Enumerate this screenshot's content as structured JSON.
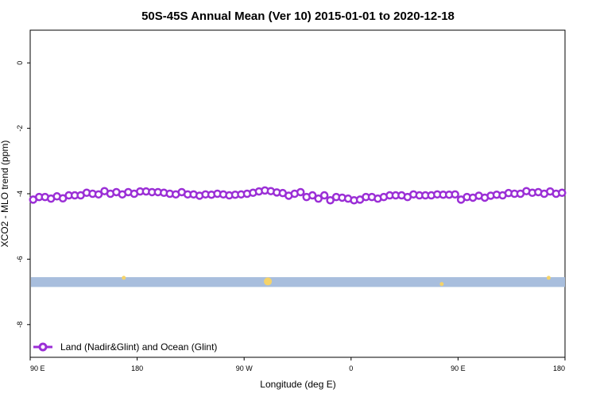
{
  "chart_data": {
    "type": "line",
    "title": "50S-45S Annual Mean (Ver 10)   2015-01-01 to 2020-12-18",
    "xlabel": "Longitude (deg E)",
    "ylabel": "XCO2 - MLO trend (ppm)",
    "xlim": [
      90,
      450
    ],
    "ylim": [
      -9,
      1
    ],
    "x_ticks": [
      {
        "value": 90,
        "label": "90 E"
      },
      {
        "value": 162,
        "label": "180"
      },
      {
        "value": 234,
        "label": "90 W"
      },
      {
        "value": 306,
        "label": "0"
      },
      {
        "value": 378,
        "label": "90 E"
      },
      {
        "value": 450,
        "label": "180"
      }
    ],
    "y_ticks": [
      0,
      -2,
      -4,
      -6,
      -8
    ],
    "legend": {
      "position": "bottom-left",
      "label": "Land (Nadir&Glint) and Ocean (Glint)",
      "color": "#9b2fd6"
    },
    "series": [
      {
        "name": "Land (Nadir&Glint) and Ocean (Glint)",
        "color": "#9b2fd6",
        "x": [
          92,
          96,
          100,
          104,
          108,
          112,
          116,
          120,
          124,
          128,
          132,
          136,
          140,
          144,
          148,
          152,
          156,
          160,
          164,
          168,
          172,
          176,
          180,
          184,
          188,
          192,
          196,
          200,
          204,
          208,
          212,
          216,
          220,
          224,
          228,
          232,
          236,
          240,
          244,
          248,
          252,
          256,
          260,
          264,
          268,
          272,
          276,
          280,
          284,
          288,
          292,
          296,
          300,
          304,
          308,
          312,
          316,
          320,
          324,
          328,
          332,
          336,
          340,
          344,
          348,
          352,
          356,
          360,
          364,
          368,
          372,
          376,
          380,
          384,
          388,
          392,
          396,
          400,
          404,
          408,
          412,
          416,
          420,
          424,
          428,
          432,
          436,
          440,
          444,
          448
        ],
        "values": [
          -4.18,
          -4.1,
          -4.1,
          -4.15,
          -4.08,
          -4.14,
          -4.05,
          -4.05,
          -4.05,
          -3.97,
          -4.0,
          -4.02,
          -3.92,
          -4.0,
          -3.95,
          -4.02,
          -3.95,
          -4.0,
          -3.93,
          -3.93,
          -3.95,
          -3.95,
          -3.97,
          -4.0,
          -4.02,
          -3.95,
          -4.02,
          -4.02,
          -4.06,
          -4.02,
          -4.03,
          -4.0,
          -4.02,
          -4.05,
          -4.03,
          -4.02,
          -4.0,
          -3.97,
          -3.93,
          -3.9,
          -3.92,
          -3.96,
          -3.98,
          -4.06,
          -4.0,
          -3.95,
          -4.1,
          -4.05,
          -4.15,
          -4.05,
          -4.2,
          -4.1,
          -4.12,
          -4.15,
          -4.2,
          -4.18,
          -4.1,
          -4.1,
          -4.15,
          -4.1,
          -4.05,
          -4.05,
          -4.05,
          -4.1,
          -4.02,
          -4.05,
          -4.05,
          -4.05,
          -4.02,
          -4.03,
          -4.03,
          -4.02,
          -4.18,
          -4.1,
          -4.12,
          -4.06,
          -4.12,
          -4.06,
          -4.03,
          -4.05,
          -3.98,
          -4.0,
          -4.0,
          -3.92,
          -3.97,
          -3.95,
          -4.0,
          -3.93,
          -4.0,
          -3.97
        ]
      }
    ],
    "band": {
      "y_from": -6.55,
      "y_to": -6.85,
      "color": "#a8bedd"
    },
    "markers": [
      {
        "x": 153,
        "y": -6.57,
        "color": "#f5d36a"
      },
      {
        "x": 250,
        "y": -6.68,
        "color": "#f5d36a"
      },
      {
        "x": 367,
        "y": -6.76,
        "color": "#f5d36a"
      },
      {
        "x": 439,
        "y": -6.57,
        "color": "#f5d36a"
      }
    ]
  }
}
